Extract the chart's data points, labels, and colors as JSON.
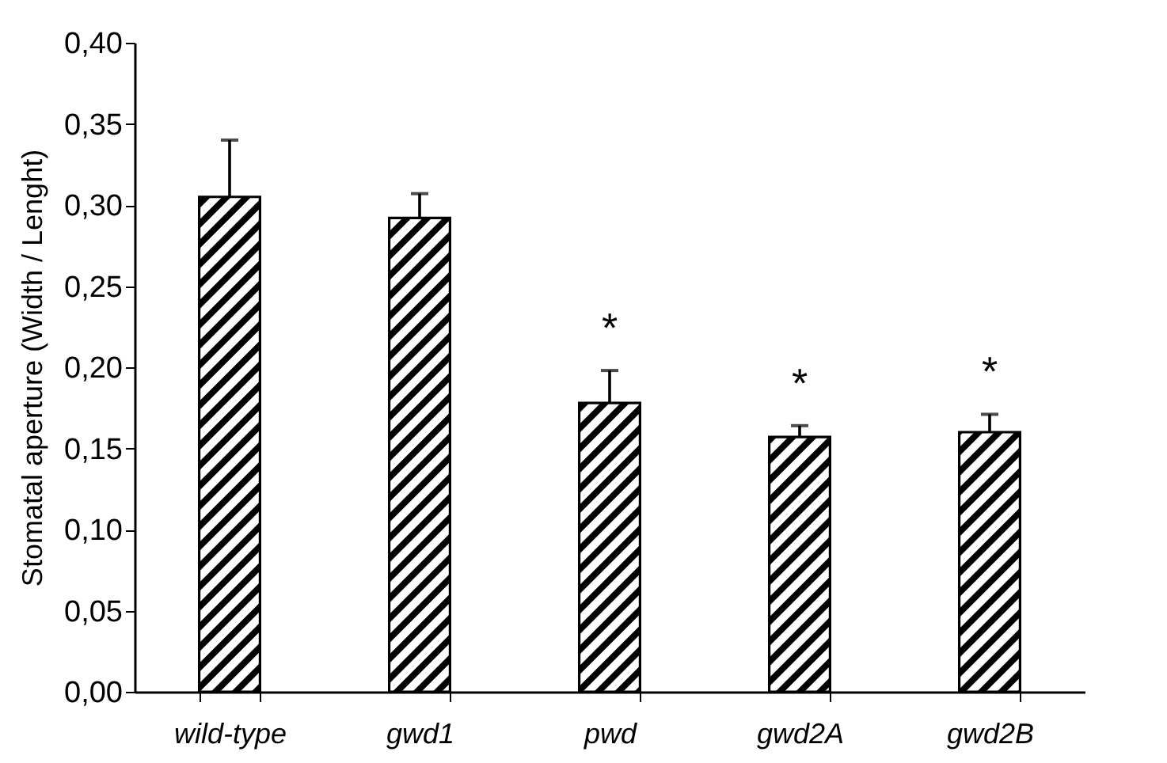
{
  "chart_data": {
    "type": "bar",
    "ylabel": "Stomatal aperture (Width / Lenght)",
    "categories": [
      "wild-type",
      "gwd1",
      "pwd",
      "gwd2A",
      "gwd2B"
    ],
    "values": [
      0.305,
      0.292,
      0.178,
      0.157,
      0.16
    ],
    "errors": [
      [
        0.305,
        0.34
      ],
      [
        0.292,
        0.307
      ],
      [
        0.178,
        0.198
      ],
      [
        0.157,
        0.164
      ],
      [
        0.16,
        0.171
      ]
    ],
    "color": "#000000",
    "ylim": [
      0,
      0.4
    ],
    "yticks": [
      {
        "value": 0,
        "label": "0,00"
      },
      {
        "value": 0.05,
        "label": "0,05"
      },
      {
        "value": 0.1,
        "label": "0,10"
      },
      {
        "value": 0.15,
        "label": "0,15"
      },
      {
        "value": 0.2,
        "label": "0,20"
      },
      {
        "value": 0.25,
        "label": "0,25"
      },
      {
        "value": 0.3,
        "label": "0,30"
      },
      {
        "value": 0.35,
        "label": "0,35"
      },
      {
        "value": 0.4,
        "label": "0,40"
      }
    ],
    "annotations": [
      {
        "text": "*",
        "x": "pwd",
        "y": 0.198
      },
      {
        "text": "*",
        "x": "gwd2A",
        "y": 0.164
      },
      {
        "text": "*",
        "x": "gwd2B",
        "y": 0.171
      }
    ],
    "grid": false
  }
}
